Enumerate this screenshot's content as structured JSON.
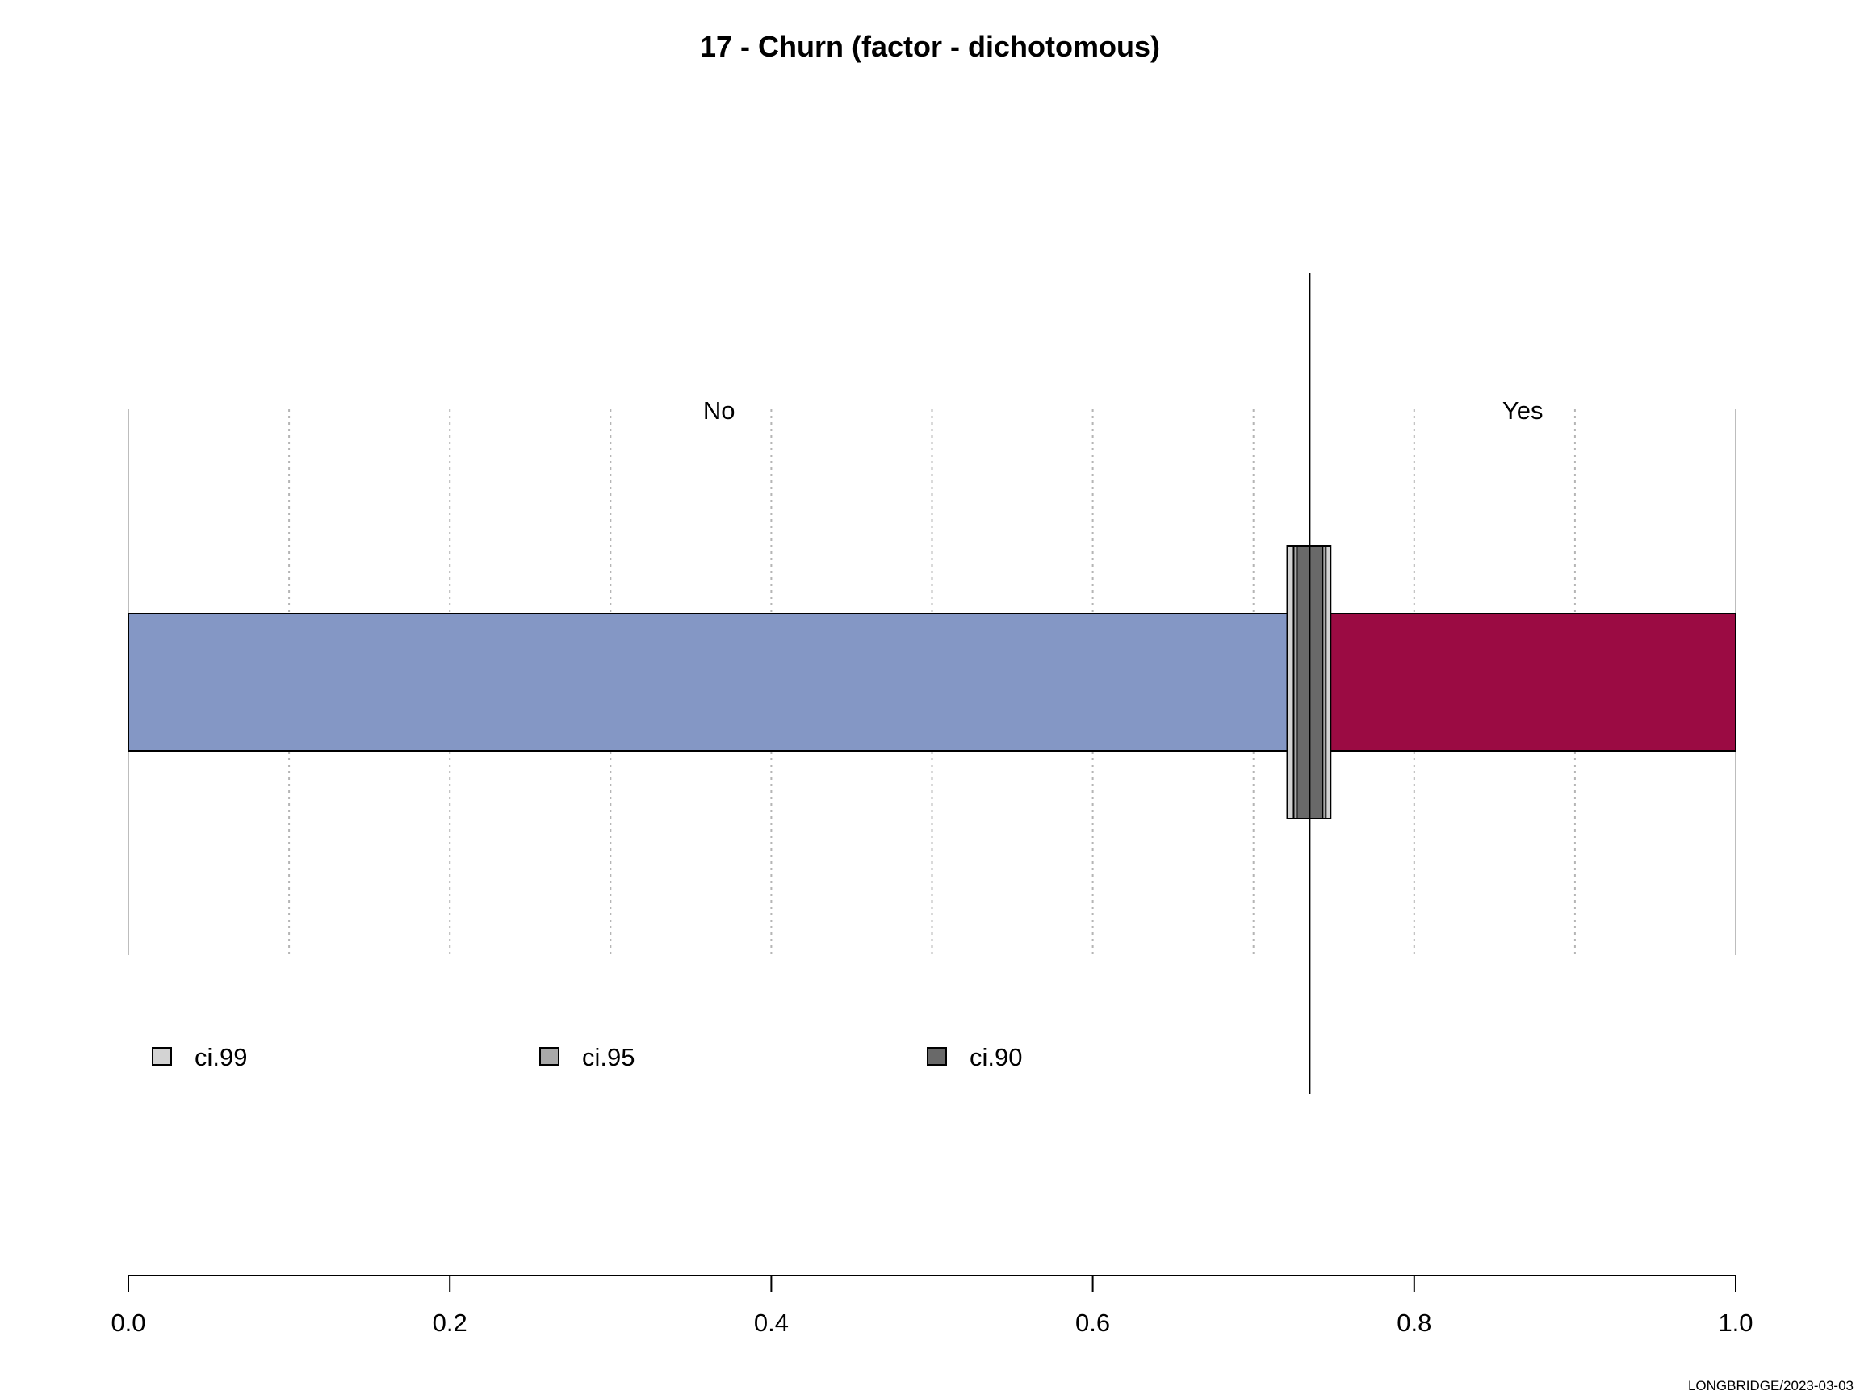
{
  "chart_data": {
    "type": "bar",
    "title": "17 - Churn (factor - dichotomous)",
    "orientation": "horizontal-stacked",
    "categories": [
      "No",
      "Yes"
    ],
    "values": [
      0.735,
      0.265
    ],
    "colors": {
      "No": "#8497c5",
      "Yes": "#9b0b43"
    },
    "xlim": [
      0,
      1
    ],
    "x_ticks": [
      "0.0",
      "0.2",
      "0.4",
      "0.6",
      "0.8",
      "1.0"
    ],
    "x_tick_values": [
      0,
      0.2,
      0.4,
      0.6,
      0.8,
      1.0
    ],
    "minor_gridlines": [
      0.1,
      0.3,
      0.5,
      0.7,
      0.9
    ],
    "grid": true,
    "reference_value": 0.735,
    "confidence_intervals": [
      {
        "name": "ci.99",
        "low": 0.721,
        "high": 0.748,
        "color": "#d3d3d3"
      },
      {
        "name": "ci.95",
        "low": 0.725,
        "high": 0.745,
        "color": "#a9a9a9"
      },
      {
        "name": "ci.90",
        "low": 0.727,
        "high": 0.743,
        "color": "#696969"
      }
    ],
    "legend": {
      "placement": "bottom-left",
      "items": [
        "ci.99",
        "ci.95",
        "ci.90"
      ]
    }
  },
  "footer": "LONGBRIDGE/2023-03-03"
}
